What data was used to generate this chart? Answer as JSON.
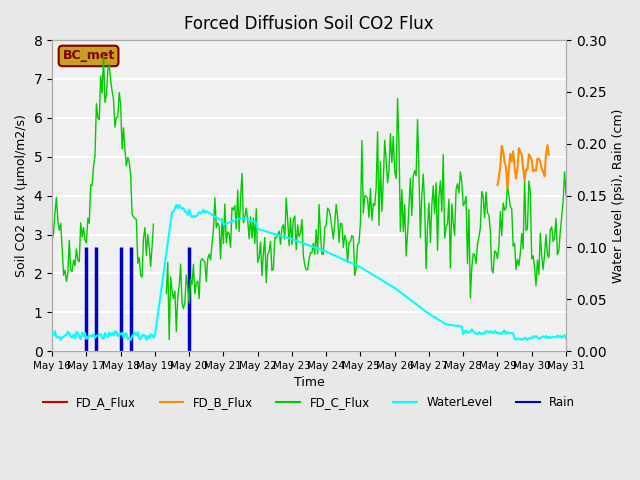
{
  "title": "Forced Diffusion Soil CO2 Flux",
  "xlabel": "Time",
  "ylabel_left": "Soil CO2 Flux (μmol/m2/s)",
  "ylabel_right": "Water Level (psi), Rain (cm)",
  "xlim_start": "2023-05-16",
  "xlim_end": "2023-05-31",
  "ylim_left": [
    0.0,
    8.0
  ],
  "ylim_right": [
    0.0,
    0.3
  ],
  "xtick_labels": [
    "May 16",
    "May 17",
    "May 18",
    "May 19",
    "May 20",
    "May 21",
    "May 22",
    "May 23",
    "May 24",
    "May 25",
    "May 26",
    "May 27",
    "May 28",
    "May 29",
    "May 30",
    "May 31"
  ],
  "bg_color": "#e8e8e8",
  "ax_bg_color": "#f0f0f0",
  "grid_color": "white",
  "bc_met_box_color": "#c8a020",
  "bc_met_text_color": "#800000",
  "legend_items": [
    {
      "label": "FD_A_Flux",
      "color": "#cc0000",
      "linestyle": "-"
    },
    {
      "label": "FD_B_Flux",
      "color": "#ff8c00",
      "linestyle": "-"
    },
    {
      "label": "FD_C_Flux",
      "color": "#00cc00",
      "linestyle": "-"
    },
    {
      "label": "WaterLevel",
      "color": "#00cccc",
      "linestyle": "-"
    },
    {
      "label": "Rain",
      "color": "#0000cc",
      "linestyle": "-"
    }
  ]
}
